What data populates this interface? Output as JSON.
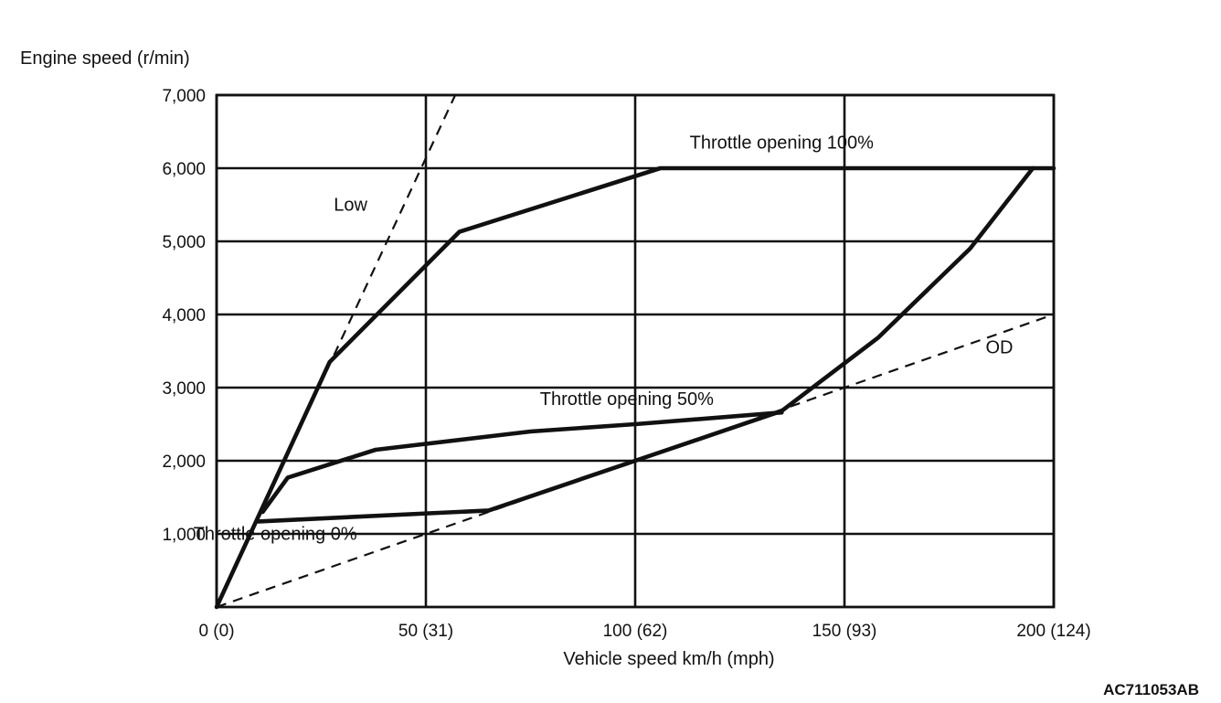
{
  "chart_data": {
    "type": "line",
    "ylabel": "Engine speed (r/min)",
    "xlabel": "Vehicle speed  km/h (mph)",
    "xlim": [
      0,
      200
    ],
    "ylim": [
      0,
      7000
    ],
    "xticks": [
      0,
      50,
      100,
      150,
      200
    ],
    "xtick_labels": [
      "0 (0)",
      "50 (31)",
      "100 (62)",
      "150 (93)",
      "200 (124)"
    ],
    "yticks": [
      1000,
      2000,
      3000,
      4000,
      5000,
      6000,
      7000
    ],
    "ytick_labels": [
      "1,000",
      "2,000",
      "3,000",
      "4,000",
      "5,000",
      "6,000",
      "7,000"
    ],
    "grid": true,
    "series": [
      {
        "name": "Throttle opening 100%",
        "style": "solid",
        "x": [
          0,
          27,
          58,
          106,
          200
        ],
        "y": [
          0,
          3350,
          5130,
          6000,
          6000
        ]
      },
      {
        "name": "Throttle opening 50%",
        "style": "solid",
        "x": [
          11,
          17,
          38,
          75,
          100,
          135
        ],
        "y": [
          1300,
          1770,
          2150,
          2400,
          2500,
          2660
        ]
      },
      {
        "name": "Throttle opening 0%",
        "style": "solid",
        "x": [
          10,
          65,
          100,
          135,
          158,
          180,
          195
        ],
        "y": [
          1170,
          1320,
          2000,
          2680,
          3680,
          4900,
          6000
        ]
      },
      {
        "name": "Low",
        "style": "dashed",
        "x": [
          0,
          57
        ],
        "y": [
          0,
          7000
        ]
      },
      {
        "name": "OD",
        "style": "dashed",
        "x": [
          0,
          200
        ],
        "y": [
          0,
          4000
        ]
      }
    ],
    "annotations": [
      {
        "text": "Throttle opening 100%",
        "x": 135,
        "y": 6270
      },
      {
        "text": "Throttle opening 50%",
        "x": 98,
        "y": 2760
      },
      {
        "text": "Throttle opening 0%",
        "x": 14,
        "y": 920
      },
      {
        "text": "Low",
        "x": 32,
        "y": 5420
      },
      {
        "text": "OD",
        "x": 187,
        "y": 3470
      }
    ]
  },
  "figure_code": "AC711053AB",
  "colors": {
    "line": "#111111",
    "grid": "#111111",
    "background": "#ffffff"
  }
}
